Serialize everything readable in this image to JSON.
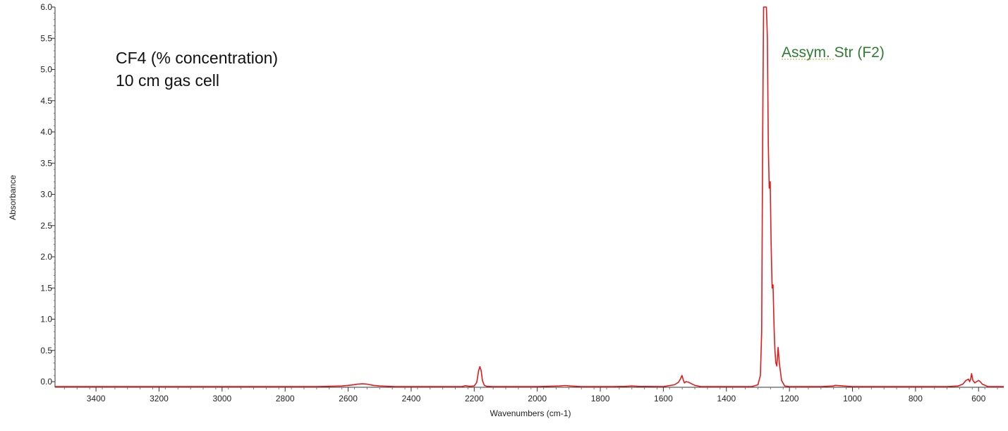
{
  "chart_data": {
    "type": "line",
    "title": "",
    "xlabel": "Wavenumbers (cm-1)",
    "ylabel": "Absorbance",
    "xlim": [
      3530,
      520
    ],
    "ylim": [
      -0.09,
      6.0
    ],
    "x_reversed": true,
    "x_ticks": [
      "3400",
      "3200",
      "3000",
      "2800",
      "2600",
      "2400",
      "2200",
      "2000",
      "1800",
      "1600",
      "1400",
      "1200",
      "1000",
      "800",
      "600"
    ],
    "y_ticks": [
      "0.0",
      "0.5",
      "1.0",
      "1.5",
      "2.0",
      "2.5",
      "3.0",
      "3.5",
      "4.0",
      "4.5",
      "5.0",
      "5.5",
      "6.0"
    ],
    "grid": false,
    "annotations": [
      {
        "text": "CF4 (% concentration)",
        "color": "#111111"
      },
      {
        "text": "10 cm gas cell",
        "color": "#111111"
      },
      {
        "text": "Assym. Str (F2)",
        "color": "#2e7d32"
      }
    ],
    "series": [
      {
        "color": "#e31a1c",
        "x": [
          3530,
          3000,
          2700,
          2620,
          2590,
          2570,
          2555,
          2540,
          2520,
          2500,
          2450,
          2300,
          2240,
          2228,
          2215,
          2200,
          2192,
          2186,
          2182,
          2178,
          2174,
          2168,
          2160,
          2140,
          2000,
          1930,
          1912,
          1895,
          1860,
          1760,
          1720,
          1700,
          1680,
          1600,
          1565,
          1552,
          1546,
          1541,
          1537,
          1533,
          1528,
          1520,
          1512,
          1500,
          1480,
          1400,
          1320,
          1300,
          1292,
          1288,
          1285,
          1282,
          1279,
          1276,
          1273,
          1270,
          1267,
          1264,
          1261,
          1258,
          1255,
          1252,
          1249,
          1246,
          1243,
          1240,
          1236,
          1232,
          1225,
          1215,
          1200,
          1100,
          1060,
          1055,
          1000,
          900,
          700,
          665,
          650,
          640,
          632,
          628,
          625,
          622,
          618,
          612,
          606,
          600,
          595,
          588,
          570,
          520
        ],
        "y": [
          -0.08,
          -0.08,
          -0.08,
          -0.07,
          -0.055,
          -0.04,
          -0.035,
          -0.04,
          -0.06,
          -0.07,
          -0.08,
          -0.08,
          -0.08,
          -0.065,
          -0.075,
          -0.07,
          -0.01,
          0.18,
          0.24,
          0.18,
          0.02,
          -0.06,
          -0.075,
          -0.08,
          -0.08,
          -0.07,
          -0.062,
          -0.07,
          -0.08,
          -0.08,
          -0.075,
          -0.07,
          -0.075,
          -0.08,
          -0.05,
          -0.01,
          0.04,
          0.1,
          0.03,
          -0.02,
          0.0,
          -0.01,
          -0.03,
          -0.06,
          -0.08,
          -0.08,
          -0.08,
          -0.05,
          0.1,
          0.8,
          3.9,
          6.0,
          6.0,
          6.0,
          6.0,
          5.5,
          3.8,
          3.1,
          3.2,
          2.2,
          1.5,
          1.55,
          0.9,
          0.5,
          0.3,
          0.25,
          0.55,
          0.3,
          0.02,
          -0.07,
          -0.08,
          -0.08,
          -0.07,
          -0.06,
          -0.08,
          -0.08,
          -0.08,
          -0.07,
          -0.04,
          0.02,
          0.04,
          0.0,
          0.04,
          0.13,
          0.02,
          -0.02,
          0.0,
          0.02,
          0.0,
          -0.04,
          -0.08,
          -0.08
        ]
      }
    ]
  }
}
